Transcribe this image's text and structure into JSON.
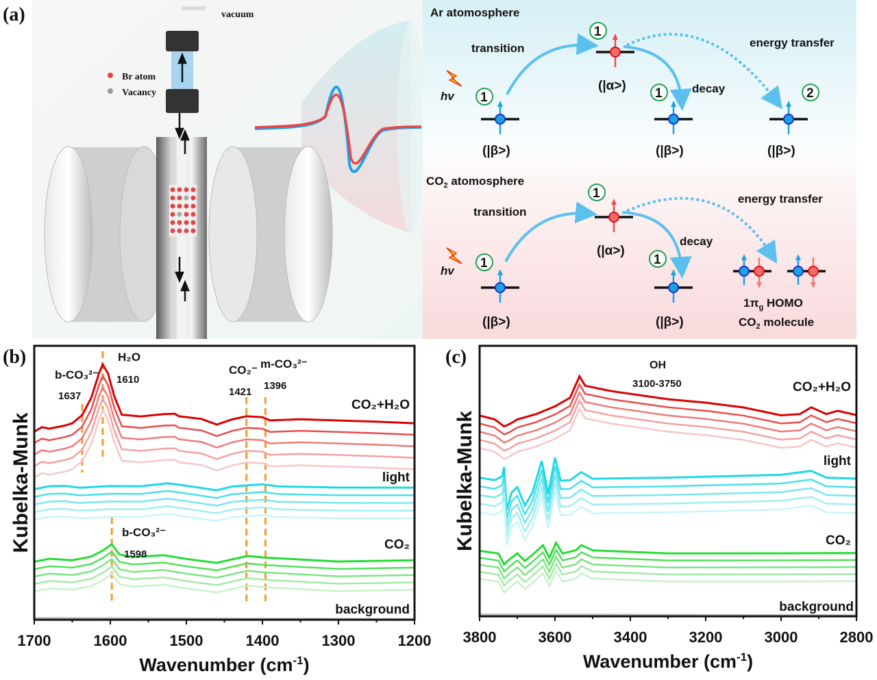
{
  "panel_a": {
    "label": "(a)",
    "setup": {
      "vacuum": "vacuum",
      "legend_br": "Br atom",
      "legend_vacancy": "Vacancy"
    },
    "ar": {
      "title": "Ar atomosphere",
      "transition": "transition",
      "decay": "decay",
      "energy_transfer": "energy transfer",
      "hv": "hv",
      "alpha": "(|α>)",
      "beta": "(|β>)",
      "n1": "1",
      "n2": "2"
    },
    "co2": {
      "title": "CO",
      "title_sub": "2",
      "title_rest": " atomosphere",
      "transition": "transition",
      "decay": "decay",
      "energy_transfer": "energy transfer",
      "hv": "hv",
      "alpha": "(|α>)",
      "beta": "(|β>)",
      "n1": "1",
      "homo_a": "1π",
      "homo_sub": "g",
      "homo_b": " HOMO",
      "mol_a": "CO",
      "mol_sub": "2",
      "mol_b": " molecule"
    },
    "colors": {
      "spin_down_blue": "#1aa3e0",
      "spin_up_red": "#f04a4a",
      "circle_green": "#22a050",
      "arrow": "#5bc0ee"
    }
  },
  "chart_data": [
    {
      "panel": "(b)",
      "type": "line",
      "xlabel": "Wavenumber (cm",
      "xlabel_sup": "-1",
      "xlabel_end": ")",
      "ylabel": "Kubelka-Munk",
      "xlim": [
        1700,
        1200
      ],
      "ylim": [
        0,
        10
      ],
      "xticks": [
        "1700",
        "1600",
        "1500",
        "1400",
        "1300",
        "1200"
      ],
      "yticks_shown": false,
      "group_labels": {
        "co2h2o": "CO₂+H₂O",
        "light": "light",
        "co2": "CO₂",
        "background": "background"
      },
      "annotations": [
        {
          "text": "b-CO₃²⁻",
          "value": "1637",
          "x": 1637
        },
        {
          "text": "H₂O",
          "value": "1610",
          "x": 1610
        },
        {
          "text": "CO₂⁻",
          "value": "1421",
          "x": 1421
        },
        {
          "text": "m-CO₃²⁻",
          "value": "1396",
          "x": 1396
        },
        {
          "text": "b-CO₃²⁻",
          "value": "1598",
          "x": 1598
        }
      ],
      "series": [
        {
          "group": "co2h2o",
          "colors": [
            "#d90000",
            "#ea4b4b",
            "#f07a7a",
            "#f4a0a0",
            "#f8c6c6"
          ],
          "offset_step": -0.42,
          "points": [
            [
              1700,
              6.85
            ],
            [
              1690,
              7.0
            ],
            [
              1680,
              6.95
            ],
            [
              1660,
              7.1
            ],
            [
              1650,
              7.2
            ],
            [
              1637,
              7.45
            ],
            [
              1625,
              8.1
            ],
            [
              1615,
              9.0
            ],
            [
              1610,
              9.3
            ],
            [
              1603,
              9.0
            ],
            [
              1595,
              8.2
            ],
            [
              1585,
              7.5
            ],
            [
              1560,
              7.45
            ],
            [
              1530,
              7.5
            ],
            [
              1515,
              7.55
            ],
            [
              1510,
              7.4
            ],
            [
              1480,
              7.35
            ],
            [
              1460,
              7.15
            ],
            [
              1440,
              7.3
            ],
            [
              1421,
              7.4
            ],
            [
              1400,
              7.4
            ],
            [
              1390,
              7.3
            ],
            [
              1350,
              7.3
            ],
            [
              1300,
              7.3
            ],
            [
              1250,
              7.2
            ],
            [
              1200,
              7.2
            ]
          ]
        },
        {
          "group": "light",
          "colors": [
            "#1ed8e6",
            "#48dfea",
            "#78e6ef",
            "#a2eef4",
            "#c8f5f8"
          ],
          "offset_step": -0.28,
          "points": [
            [
              1700,
              4.75
            ],
            [
              1680,
              4.85
            ],
            [
              1660,
              4.9
            ],
            [
              1640,
              4.85
            ],
            [
              1600,
              4.85
            ],
            [
              1560,
              4.9
            ],
            [
              1525,
              5.0
            ],
            [
              1510,
              4.9
            ],
            [
              1460,
              4.75
            ],
            [
              1440,
              4.85
            ],
            [
              1400,
              4.95
            ],
            [
              1380,
              4.9
            ],
            [
              1300,
              4.85
            ],
            [
              1200,
              4.85
            ]
          ]
        },
        {
          "group": "co2",
          "colors": [
            "#22dd33",
            "#52e05c",
            "#7ce482",
            "#a2eaa6",
            "#c6f2c8"
          ],
          "offset_step": -0.27,
          "points": [
            [
              1700,
              2.1
            ],
            [
              1680,
              2.2
            ],
            [
              1650,
              2.2
            ],
            [
              1625,
              2.3
            ],
            [
              1610,
              2.5
            ],
            [
              1598,
              2.75
            ],
            [
              1588,
              2.4
            ],
            [
              1570,
              2.3
            ],
            [
              1530,
              2.35
            ],
            [
              1500,
              2.2
            ],
            [
              1460,
              2.1
            ],
            [
              1420,
              2.3
            ],
            [
              1395,
              2.25
            ],
            [
              1300,
              2.15
            ],
            [
              1200,
              2.2
            ]
          ]
        },
        {
          "group": "background",
          "colors": [
            "#c0c0c0"
          ],
          "offset_step": 0,
          "points": [
            [
              1700,
              0.05
            ],
            [
              1200,
              0.05
            ]
          ]
        }
      ]
    },
    {
      "panel": "(c)",
      "type": "line",
      "xlabel": "Wavenumber (cm",
      "xlabel_sup": "-1",
      "xlabel_end": ")",
      "ylabel": "Kubelka-Munk",
      "xlim": [
        3800,
        2800
      ],
      "ylim": [
        0,
        10
      ],
      "xticks": [
        "3800",
        "3600",
        "3400",
        "3200",
        "3000",
        "2800"
      ],
      "yticks_shown": false,
      "group_labels": {
        "co2h2o": "CO₂+H₂O",
        "light": "light",
        "co2": "CO₂",
        "background": "background"
      },
      "annotations": [
        {
          "text": "OH",
          "value": "3100-3750"
        }
      ],
      "series": [
        {
          "group": "co2h2o",
          "colors": [
            "#d90000",
            "#ea4b4b",
            "#f07a7a",
            "#f4a0a0",
            "#f8c6c6"
          ],
          "offset_step": -0.3,
          "points": [
            [
              3800,
              7.4
            ],
            [
              3760,
              7.3
            ],
            [
              3735,
              7.0
            ],
            [
              3720,
              7.1
            ],
            [
              3700,
              7.25
            ],
            [
              3650,
              7.5
            ],
            [
              3600,
              7.75
            ],
            [
              3560,
              8.1
            ],
            [
              3535,
              8.9
            ],
            [
              3520,
              8.5
            ],
            [
              3450,
              8.3
            ],
            [
              3300,
              8.05
            ],
            [
              3200,
              7.9
            ],
            [
              3100,
              7.7
            ],
            [
              3000,
              7.4
            ],
            [
              2950,
              7.5
            ],
            [
              2920,
              7.7
            ],
            [
              2880,
              7.5
            ],
            [
              2850,
              7.6
            ],
            [
              2800,
              7.45
            ]
          ]
        },
        {
          "group": "light",
          "colors": [
            "#1ed8e6",
            "#48dfea",
            "#78e6ef",
            "#a2eef4",
            "#c8f5f8"
          ],
          "offset_step": -0.32,
          "points": [
            [
              3800,
              5.1
            ],
            [
              3760,
              5.05
            ],
            [
              3740,
              5.2
            ],
            [
              3735,
              5.5
            ],
            [
              3728,
              3.9
            ],
            [
              3715,
              4.6
            ],
            [
              3700,
              4.75
            ],
            [
              3680,
              4.1
            ],
            [
              3660,
              4.6
            ],
            [
              3635,
              5.75
            ],
            [
              3618,
              4.5
            ],
            [
              3600,
              5.85
            ],
            [
              3585,
              5.0
            ],
            [
              3560,
              5.05
            ],
            [
              3530,
              5.3
            ],
            [
              3500,
              5.1
            ],
            [
              3300,
              5.15
            ],
            [
              3000,
              5.2
            ],
            [
              2920,
              5.35
            ],
            [
              2880,
              5.15
            ],
            [
              2800,
              5.1
            ]
          ]
        },
        {
          "group": "co2",
          "colors": [
            "#22dd33",
            "#52e05c",
            "#7ce482",
            "#a2eaa6",
            "#c6f2c8"
          ],
          "offset_step": -0.26,
          "points": [
            [
              3800,
              2.4
            ],
            [
              3750,
              2.35
            ],
            [
              3735,
              1.9
            ],
            [
              3720,
              2.1
            ],
            [
              3700,
              2.3
            ],
            [
              3680,
              2.05
            ],
            [
              3660,
              2.3
            ],
            [
              3632,
              2.65
            ],
            [
              3615,
              2.2
            ],
            [
              3597,
              2.75
            ],
            [
              3580,
              2.35
            ],
            [
              3545,
              2.45
            ],
            [
              3530,
              2.6
            ],
            [
              3500,
              2.45
            ],
            [
              3300,
              2.35
            ],
            [
              3000,
              2.3
            ],
            [
              2800,
              2.35
            ]
          ]
        },
        {
          "group": "background",
          "colors": [
            "#c0c0c0"
          ],
          "offset_step": 0,
          "points": [
            [
              3800,
              0.05
            ],
            [
              2800,
              0.05
            ]
          ]
        }
      ]
    }
  ]
}
